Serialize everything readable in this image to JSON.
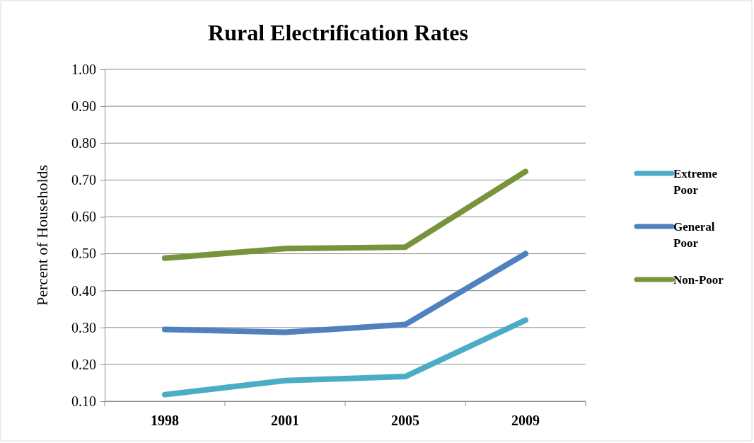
{
  "chart_data": {
    "type": "line",
    "title": "Rural Electrification Rates",
    "ylabel": "Percent of Households",
    "categories": [
      "1998",
      "2001",
      "2005",
      "2009"
    ],
    "series": [
      {
        "name": "Extreme Poor",
        "color": "#4bacc6",
        "values": [
          0.118,
          0.156,
          0.167,
          0.32
        ]
      },
      {
        "name": "General Poor",
        "color": "#4f81bd",
        "values": [
          0.295,
          0.287,
          0.308,
          0.5
        ]
      },
      {
        "name": "Non-Poor",
        "color": "#77933c",
        "values": [
          0.488,
          0.514,
          0.518,
          0.723
        ]
      }
    ],
    "ylim": [
      0.1,
      1.0
    ],
    "yticks": [
      {
        "value": 0.1,
        "label": "0.10"
      },
      {
        "value": 0.2,
        "label": "0.20"
      },
      {
        "value": 0.3,
        "label": "0.30"
      },
      {
        "value": 0.4,
        "label": "0.40"
      },
      {
        "value": 0.5,
        "label": "0.50"
      },
      {
        "value": 0.6,
        "label": "0.60"
      },
      {
        "value": 0.7,
        "label": "0.70"
      },
      {
        "value": 0.8,
        "label": "0.80"
      },
      {
        "value": 0.9,
        "label": "0.90"
      },
      {
        "value": 1.0,
        "label": "1.00"
      }
    ],
    "grid": "y",
    "legend": "right",
    "marker": "none",
    "line_style": "solid"
  }
}
